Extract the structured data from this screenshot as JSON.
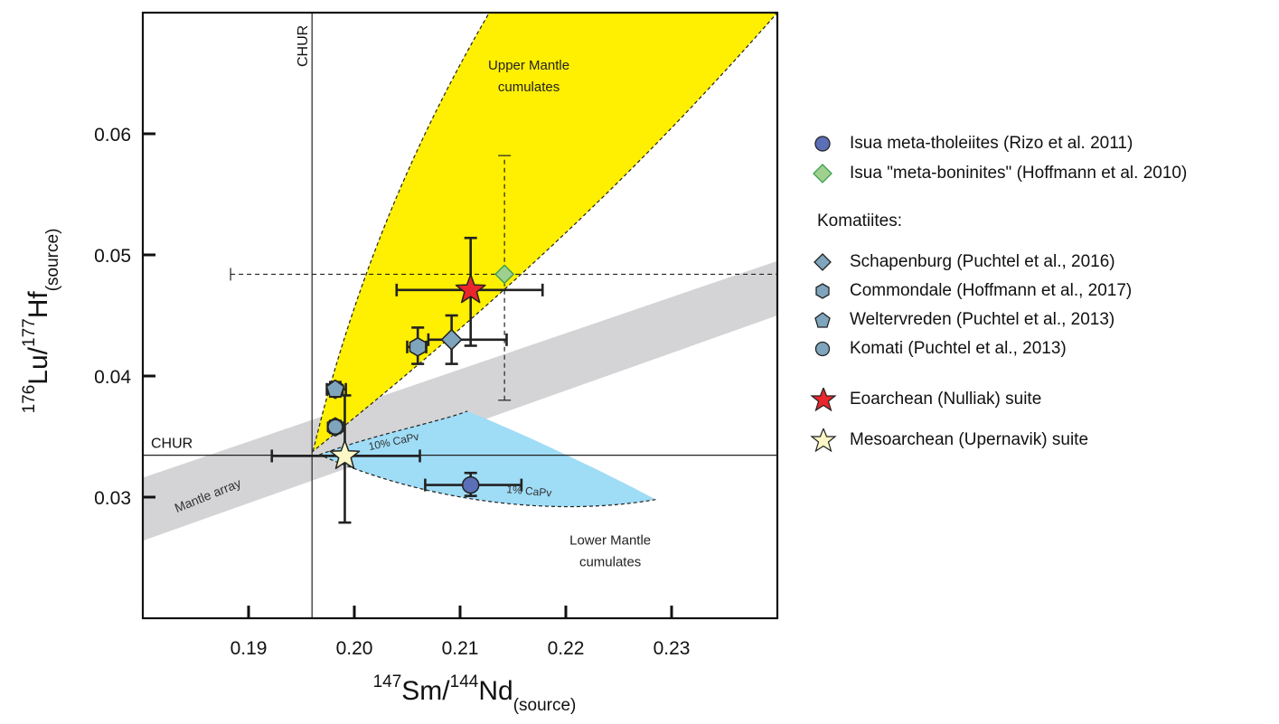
{
  "chart_data": {
    "type": "scatter",
    "title": "",
    "xlabel": {
      "pre": "147",
      "a": "Sm/",
      "pre2": "144",
      "b": "Nd",
      "sub": "(source)"
    },
    "ylabel": {
      "pre": "176",
      "a": "Lu/",
      "pre2": "177",
      "b": "Hf",
      "sub": "(source)"
    },
    "xlim": [
      0.18,
      0.24
    ],
    "ylim": [
      0.02,
      0.07
    ],
    "xticks": [
      "0.19",
      "0.20",
      "0.21",
      "0.22",
      "0.23"
    ],
    "xtick_values": [
      0.19,
      0.2,
      0.21,
      0.22,
      0.23
    ],
    "yticks": [
      "0.03",
      "0.04",
      "0.05",
      "0.06"
    ],
    "ytick_values": [
      0.03,
      0.04,
      0.05,
      0.06
    ],
    "grid": false,
    "legend_position": "right",
    "reference_lines": [
      {
        "name": "chur-vertical",
        "orientation": "vertical",
        "value": 0.196,
        "label": "CHUR"
      },
      {
        "name": "chur-horizontal",
        "orientation": "horizontal",
        "value": 0.03346,
        "label": "CHUR"
      }
    ],
    "regions": [
      {
        "name": "upper-mantle-cumulates",
        "label_lines": [
          "Upper Mantle",
          "cumulates"
        ],
        "color": "#ffef00",
        "label_at": [
          0.2165,
          0.0653
        ]
      },
      {
        "name": "lower-mantle-cumulates",
        "label_lines": [
          "Lower Mantle",
          "cumulates"
        ],
        "color": "#9fdcf6",
        "label_at": [
          0.2242,
          0.0261
        ],
        "annotations": [
          {
            "text": "10% CaPv",
            "at": [
              0.2038,
              0.0343
            ],
            "angle": -12
          },
          {
            "text": "1% CaPv",
            "at": [
              0.2165,
              0.0302
            ],
            "angle": 5
          }
        ]
      },
      {
        "name": "mantle-array",
        "label": "Mantle array",
        "color": "#d4d4d6",
        "label_at": [
          0.1863,
          0.0298
        ],
        "angle": -22,
        "band_upper": [
          [
            0.18,
            0.0316
          ],
          [
            0.24,
            0.0495
          ]
        ],
        "band_lower": [
          [
            0.18,
            0.0264
          ],
          [
            0.24,
            0.045
          ]
        ]
      }
    ],
    "series": [
      {
        "name": "Isua meta-tholeiites (Rizo et al. 2011)",
        "marker": "circle",
        "color": "#5b6fb8",
        "size": 9,
        "points": [
          {
            "x": 0.211,
            "y": 0.031,
            "xerr": [
              0.2067,
              0.2158
            ],
            "yerr": [
              0.0301,
              0.032
            ]
          }
        ]
      },
      {
        "name": "Isua \"meta-boninites\" (Hoffmann et al. 2010)",
        "marker": "diamond",
        "color": "#9fd090",
        "stroke": "#3fa050",
        "size": 10,
        "points": [
          {
            "x": 0.2142,
            "y": 0.0484,
            "xerr": [
              0.1883,
              0.24
            ],
            "yerr": [
              0.038,
              0.0582
            ],
            "dashed": true
          }
        ]
      },
      {
        "name": "Schapenburg (Puchtel et al., 2016)",
        "marker": "diamond",
        "color": "#7fa5bd",
        "size": 11,
        "points": [
          {
            "x": 0.2092,
            "y": 0.043,
            "xerr": [
              0.207,
              0.2144
            ],
            "yerr": [
              0.041,
              0.045
            ]
          }
        ]
      },
      {
        "name": "Commondale (Hoffmann et al., 2017)",
        "marker": "hexagon",
        "color": "#7fa5bd",
        "size": 10,
        "points": [
          {
            "x": 0.1982,
            "y": 0.0358,
            "xerr": [
              0.1979,
              0.1985
            ],
            "yerr": [
              0.0353,
              0.0363
            ]
          },
          {
            "x": 0.1982,
            "y": 0.0389,
            "xerr": [
              0.1974,
              0.1992
            ],
            "yerr": [
              0.0383,
              0.0395
            ]
          },
          {
            "x": 0.206,
            "y": 0.0424,
            "xerr": [
              0.205,
              0.2068
            ],
            "yerr": [
              0.041,
              0.044
            ]
          }
        ]
      },
      {
        "name": "Weltervreden (Puchtel et al., 2013)",
        "marker": "pentagon",
        "color": "#7fa5bd",
        "size": 10,
        "points": [
          {
            "x": 0.1982,
            "y": 0.0389,
            "xerr": [
              0.1979,
              0.1985
            ],
            "yerr": [
              0.0385,
              0.0393
            ]
          }
        ]
      },
      {
        "name": "Komati (Puchtel et al., 2013)",
        "marker": "circle",
        "color": "#7fa5bd",
        "size": 8,
        "points": [
          {
            "x": 0.1982,
            "y": 0.0358,
            "xerr": [
              0.198,
              0.1984
            ],
            "yerr": [
              0.0355,
              0.0361
            ]
          }
        ]
      },
      {
        "name": "Eoarchean (Nulliak) suite",
        "marker": "star",
        "color": "#e8262b",
        "size": 17,
        "points": [
          {
            "x": 0.211,
            "y": 0.0471,
            "xerr": [
              0.204,
              0.2178
            ],
            "yerr": [
              0.0425,
              0.0514
            ]
          }
        ]
      },
      {
        "name": "Mesoarchean (Upernavik) suite",
        "marker": "star",
        "color": "#fbf7c6",
        "size": 17,
        "points": [
          {
            "x": 0.1991,
            "y": 0.0334,
            "xerr": [
              0.1922,
              0.2062
            ],
            "yerr": [
              0.0279,
              0.0384
            ]
          }
        ]
      }
    ]
  },
  "legend": {
    "heading": "Komatiites:",
    "entries": [
      "Isua meta-tholeiites (Rizo et al. 2011)",
      "Isua \"meta-boninites\" (Hoffmann et al. 2010)",
      "Schapenburg (Puchtel et al., 2016)",
      "Commondale (Hoffmann et al., 2017)",
      "Weltervreden (Puchtel et al., 2013)",
      "Komati (Puchtel et al., 2013)",
      "Eoarchean (Nulliak) suite",
      "Mesoarchean (Upernavik) suite"
    ]
  }
}
